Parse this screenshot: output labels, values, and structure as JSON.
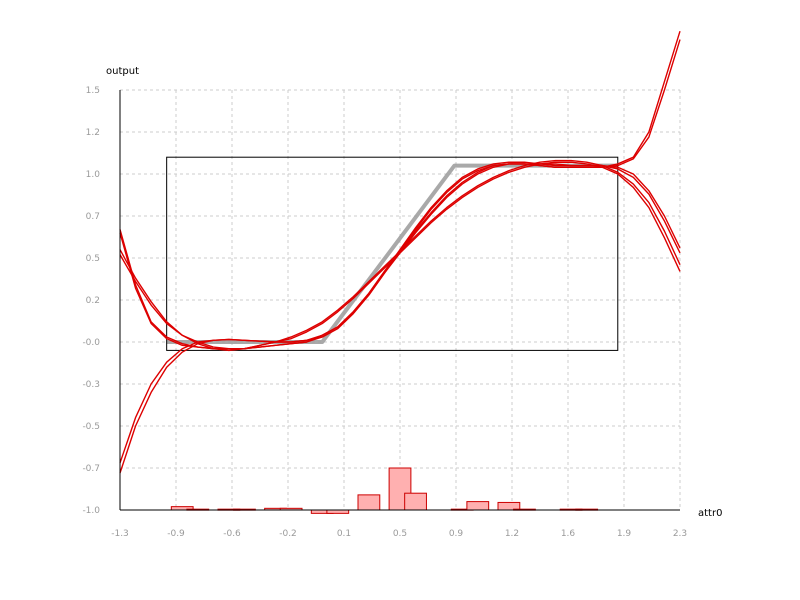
{
  "chart_data": {
    "type": "line",
    "title": "",
    "xlabel": "attr0",
    "ylabel": "output",
    "x_ticks": [
      "-1.3",
      "-0.9",
      "-0.6",
      "-0.2",
      "0.1",
      "0.5",
      "0.9",
      "1.2",
      "1.6",
      "1.9",
      "2.3"
    ],
    "y_ticks": [
      "1.5",
      "1.2",
      "1.0",
      "0.7",
      "0.5",
      "0.2",
      "-0.0",
      "-0.3",
      "-0.5",
      "-0.7",
      "-1.0"
    ],
    "xlim": [
      -1.3,
      2.3
    ],
    "ylim": [
      -1.0,
      1.5
    ],
    "grid": true,
    "colors": {
      "curves": "#dd0000",
      "target": "#9a9a9a",
      "histogram_fill": "#ffb0b0",
      "histogram_edge": "#cc0000",
      "box": "#000000",
      "grid": "#cccccc"
    },
    "target_function": {
      "x": [
        -1.0,
        0.0,
        0.85,
        1.9
      ],
      "y": [
        0.0,
        0.0,
        1.05,
        1.05
      ]
    },
    "data_box": {
      "x": [
        -1.0,
        1.9
      ],
      "y": [
        -0.05,
        1.1
      ]
    },
    "series": [
      {
        "x": [
          -1.3,
          -1.2,
          -1.1,
          -1.0,
          -0.9,
          -0.8,
          -0.7,
          -0.6,
          -0.5,
          -0.4,
          -0.3,
          -0.2,
          -0.1,
          0.0,
          0.1,
          0.2,
          0.3,
          0.4,
          0.5,
          0.6,
          0.7,
          0.8,
          0.9,
          1.0,
          1.1,
          1.2,
          1.3,
          1.4,
          1.5,
          1.6,
          1.7,
          1.8,
          1.9,
          2.0,
          2.1,
          2.2,
          2.3
        ],
        "y": [
          -0.78,
          -0.5,
          -0.3,
          -0.15,
          -0.06,
          -0.01,
          0.01,
          0.015,
          0.01,
          0.005,
          0.0,
          0.0,
          0.01,
          0.03,
          0.08,
          0.17,
          0.28,
          0.41,
          0.53,
          0.65,
          0.76,
          0.86,
          0.94,
          1.0,
          1.04,
          1.06,
          1.06,
          1.05,
          1.04,
          1.04,
          1.04,
          1.04,
          1.06,
          1.1,
          1.25,
          1.55,
          1.85
        ]
      },
      {
        "x": [
          -1.3,
          -1.2,
          -1.1,
          -1.0,
          -0.9,
          -0.8,
          -0.7,
          -0.6,
          -0.5,
          -0.4,
          -0.3,
          -0.2,
          -0.1,
          0.0,
          0.1,
          0.2,
          0.3,
          0.4,
          0.5,
          0.6,
          0.7,
          0.8,
          0.9,
          1.0,
          1.1,
          1.2,
          1.3,
          1.4,
          1.5,
          1.6,
          1.7,
          1.8,
          1.9,
          2.0,
          2.1,
          2.2,
          2.3
        ],
        "y": [
          -0.72,
          -0.45,
          -0.25,
          -0.12,
          -0.04,
          0.0,
          0.01,
          0.015,
          0.01,
          0.005,
          0.0,
          0.0,
          0.01,
          0.04,
          0.09,
          0.18,
          0.29,
          0.42,
          0.54,
          0.66,
          0.77,
          0.87,
          0.95,
          1.01,
          1.05,
          1.06,
          1.06,
          1.05,
          1.04,
          1.04,
          1.04,
          1.04,
          1.05,
          1.09,
          1.22,
          1.5,
          1.8
        ]
      },
      {
        "x": [
          -1.3,
          -1.2,
          -1.1,
          -1.0,
          -0.9,
          -0.8,
          -0.7,
          -0.6,
          -0.5,
          -0.4,
          -0.3,
          -0.2,
          -0.1,
          0.0,
          0.1,
          0.2,
          0.3,
          0.4,
          0.5,
          0.6,
          0.7,
          0.8,
          0.9,
          1.0,
          1.1,
          1.2,
          1.3,
          1.4,
          1.5,
          1.6,
          1.7,
          1.8,
          1.9,
          2.0,
          2.1,
          2.2,
          2.3
        ],
        "y": [
          0.67,
          0.34,
          0.12,
          0.03,
          -0.01,
          -0.03,
          -0.04,
          -0.04,
          -0.04,
          -0.03,
          -0.02,
          -0.01,
          0.0,
          0.03,
          0.08,
          0.17,
          0.28,
          0.41,
          0.54,
          0.67,
          0.79,
          0.89,
          0.97,
          1.02,
          1.05,
          1.06,
          1.06,
          1.06,
          1.05,
          1.05,
          1.05,
          1.05,
          1.04,
          1.0,
          0.9,
          0.75,
          0.56
        ]
      },
      {
        "x": [
          -1.3,
          -1.2,
          -1.1,
          -1.0,
          -0.9,
          -0.8,
          -0.7,
          -0.6,
          -0.5,
          -0.4,
          -0.3,
          -0.2,
          -0.1,
          0.0,
          0.1,
          0.2,
          0.3,
          0.4,
          0.5,
          0.6,
          0.7,
          0.8,
          0.9,
          1.0,
          1.1,
          1.2,
          1.3,
          1.4,
          1.5,
          1.6,
          1.7,
          1.8,
          1.9,
          2.0,
          2.1,
          2.2,
          2.3
        ],
        "y": [
          0.65,
          0.32,
          0.11,
          0.02,
          -0.02,
          -0.03,
          -0.04,
          -0.04,
          -0.04,
          -0.03,
          -0.02,
          -0.01,
          0.0,
          0.04,
          0.09,
          0.18,
          0.29,
          0.42,
          0.55,
          0.68,
          0.8,
          0.9,
          0.98,
          1.03,
          1.06,
          1.07,
          1.07,
          1.06,
          1.06,
          1.05,
          1.05,
          1.05,
          1.03,
          0.98,
          0.88,
          0.72,
          0.53
        ]
      },
      {
        "x": [
          -1.3,
          -1.2,
          -1.1,
          -1.0,
          -0.9,
          -0.8,
          -0.7,
          -0.6,
          -0.5,
          -0.4,
          -0.3,
          -0.2,
          -0.1,
          0.0,
          0.1,
          0.2,
          0.3,
          0.4,
          0.5,
          0.6,
          0.7,
          0.8,
          0.9,
          1.0,
          1.1,
          1.2,
          1.3,
          1.4,
          1.5,
          1.6,
          1.7,
          1.8,
          1.9,
          2.0,
          2.1,
          2.2,
          2.3
        ],
        "y": [
          0.55,
          0.38,
          0.24,
          0.12,
          0.04,
          -0.01,
          -0.04,
          -0.05,
          -0.04,
          -0.02,
          0.0,
          0.03,
          0.07,
          0.12,
          0.19,
          0.27,
          0.36,
          0.45,
          0.54,
          0.63,
          0.72,
          0.8,
          0.87,
          0.93,
          0.98,
          1.02,
          1.05,
          1.07,
          1.08,
          1.08,
          1.07,
          1.05,
          1.01,
          0.94,
          0.83,
          0.66,
          0.46
        ]
      },
      {
        "x": [
          -1.3,
          -1.2,
          -1.1,
          -1.0,
          -0.9,
          -0.8,
          -0.7,
          -0.6,
          -0.5,
          -0.4,
          -0.3,
          -0.2,
          -0.1,
          0.0,
          0.1,
          0.2,
          0.3,
          0.4,
          0.5,
          0.6,
          0.7,
          0.8,
          0.9,
          1.0,
          1.1,
          1.2,
          1.3,
          1.4,
          1.5,
          1.6,
          1.7,
          1.8,
          1.9,
          2.0,
          2.1,
          2.2,
          2.3
        ],
        "y": [
          0.52,
          0.36,
          0.22,
          0.11,
          0.04,
          0.0,
          -0.03,
          -0.04,
          -0.04,
          -0.02,
          0.0,
          0.02,
          0.06,
          0.11,
          0.18,
          0.26,
          0.35,
          0.44,
          0.53,
          0.62,
          0.71,
          0.79,
          0.86,
          0.92,
          0.97,
          1.01,
          1.04,
          1.06,
          1.07,
          1.07,
          1.06,
          1.04,
          1.0,
          0.92,
          0.8,
          0.62,
          0.42
        ]
      }
    ],
    "histogram": {
      "bin_centers": [
        -0.9,
        -0.8,
        -0.6,
        -0.5,
        -0.3,
        -0.2,
        0.0,
        0.1,
        0.3,
        0.5,
        0.6,
        0.9,
        1.0,
        1.2,
        1.3,
        1.6,
        1.7
      ],
      "values": [
        0.02,
        0.005,
        0.005,
        0.005,
        0.01,
        0.01,
        -0.02,
        -0.02,
        0.09,
        0.25,
        0.1,
        0.005,
        0.05,
        0.045,
        0.005,
        0.005,
        0.005
      ],
      "bin_width": 0.14
    }
  }
}
